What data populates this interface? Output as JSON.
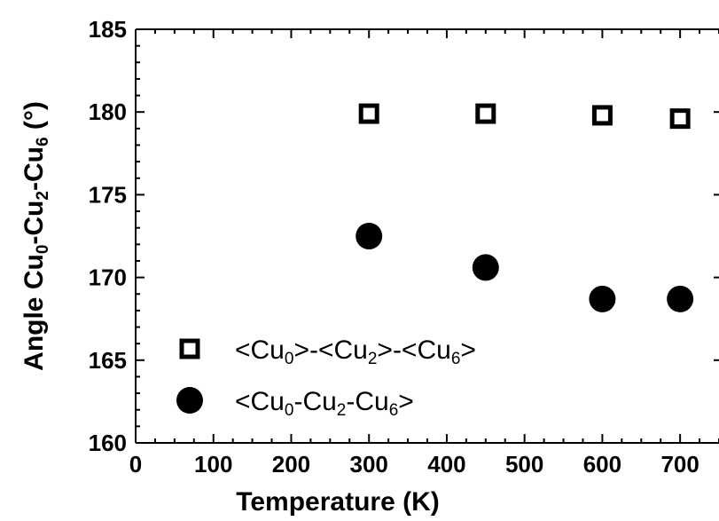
{
  "chart_data": {
    "type": "scatter",
    "xlabel": "Temperature (K)",
    "ylabel": {
      "parts": [
        {
          "text": "Angle Cu",
          "sub": false
        },
        {
          "text": "0",
          "sub": true
        },
        {
          "text": "-Cu",
          "sub": false
        },
        {
          "text": "2",
          "sub": true
        },
        {
          "text": "-Cu",
          "sub": false
        },
        {
          "text": "6",
          "sub": true
        },
        {
          "text": " (°)",
          "sub": false
        }
      ]
    },
    "xlim": [
      0,
      750
    ],
    "ylim": [
      160,
      185
    ],
    "x_ticks": [
      0,
      100,
      200,
      300,
      400,
      500,
      600,
      700
    ],
    "y_ticks": [
      160,
      165,
      170,
      175,
      180,
      185
    ],
    "legend_position": "bottom-left",
    "series": [
      {
        "marker": "open-square",
        "color": "#000000",
        "label_parts": [
          {
            "text": "<Cu",
            "sub": false
          },
          {
            "text": "0",
            "sub": true
          },
          {
            "text": ">-<Cu",
            "sub": false
          },
          {
            "text": "2",
            "sub": true
          },
          {
            "text": ">-<Cu",
            "sub": false
          },
          {
            "text": "6",
            "sub": true
          },
          {
            "text": ">",
            "sub": false
          }
        ],
        "x": [
          300,
          450,
          600,
          700
        ],
        "y": [
          179.9,
          179.9,
          179.8,
          179.6
        ]
      },
      {
        "marker": "filled-circle",
        "color": "#000000",
        "label_parts": [
          {
            "text": "<Cu",
            "sub": false
          },
          {
            "text": "0",
            "sub": true
          },
          {
            "text": "-Cu",
            "sub": false
          },
          {
            "text": "2",
            "sub": true
          },
          {
            "text": "-Cu",
            "sub": false
          },
          {
            "text": "6",
            "sub": true
          },
          {
            "text": ">",
            "sub": false
          }
        ],
        "x": [
          300,
          450,
          600,
          700
        ],
        "y": [
          172.5,
          170.6,
          168.7,
          168.7
        ]
      }
    ]
  }
}
